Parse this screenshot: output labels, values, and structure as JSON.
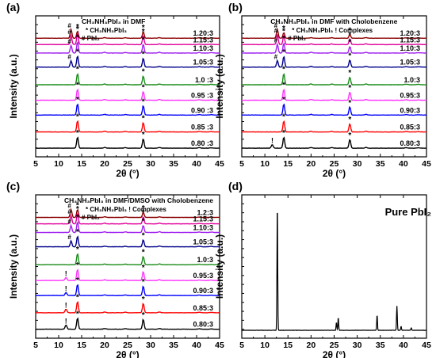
{
  "figure": {
    "x_label": "2θ (°)",
    "y_label": "Intensity (a.u.)"
  },
  "chart_data": [
    {
      "type": "line",
      "panel": "(a)",
      "title_lines": [
        "CH₃NH₃PbI₃ in DMF"
      ],
      "legend_lines": [
        "* CH₃NH₃PbI₃",
        "# PbI₂"
      ],
      "xlim": [
        5,
        45
      ],
      "x_ticks": [
        5,
        10,
        15,
        20,
        25,
        30,
        35,
        40,
        45
      ],
      "x_tick_labels": [
        "5",
        "10",
        "15",
        "20",
        "25",
        "30",
        "35",
        "40",
        "45"
      ],
      "series_labels": [
        "1.20:3",
        "1.15:3",
        "1.10:3",
        "1.05:3",
        "1.0 :3",
        "0.95 :3",
        "0.90 :3",
        "0.85 :3",
        "0.80 :3"
      ],
      "series_colors": [
        "#8b0000",
        "#e0009a",
        "#a020f0",
        "#00008b",
        "#1a8c1a",
        "#ff33ff",
        "#0000ff",
        "#ff0000",
        "#000000"
      ],
      "peaks_2theta": {
        "MAPbI3": [
          14.1,
          28.4
        ],
        "PbI2": [
          12.7
        ],
        "complex": []
      },
      "peak_heights_rel": {
        "PbI2": [
          0.95,
          0.75,
          0.65,
          0.55,
          0,
          0,
          0,
          0,
          0
        ],
        "MAPbI3_14": [
          0.75,
          0.95,
          0.95,
          0.95,
          0.95,
          0.95,
          0.95,
          0.95,
          0.95
        ],
        "MAPbI3_28": [
          0.7,
          0.75,
          0.75,
          0.75,
          0.75,
          0.75,
          0.8,
          0.8,
          0.8
        ],
        "complex": [
          0,
          0,
          0,
          0,
          0,
          0,
          0,
          0,
          0
        ]
      },
      "marked": {
        "hash": [
          true,
          true,
          true,
          true,
          false,
          false,
          false,
          false,
          false
        ],
        "star": [
          true,
          true,
          true,
          true,
          true,
          true,
          true,
          true,
          true
        ],
        "bang": [
          false,
          false,
          false,
          false,
          false,
          false,
          false,
          false,
          false
        ]
      }
    },
    {
      "type": "line",
      "panel": "(b)",
      "title_lines": [
        "CH₃NH₃PbI₃ in DMF with Cholobenzene"
      ],
      "legend_lines": [
        "* CH₃NH₃PbI₃ ! Complexes",
        "# PbI₂"
      ],
      "xlim": [
        5,
        45
      ],
      "x_ticks": [
        5,
        10,
        15,
        20,
        25,
        30,
        35,
        40,
        45
      ],
      "x_tick_labels": [
        "5",
        "10",
        "15",
        "20",
        "25",
        "30",
        "35",
        "40",
        "45"
      ],
      "series_labels": [
        "1.20:3",
        "1.15:3",
        "1.10:3",
        "1.05:3",
        "1.0:3",
        "0.95:3",
        "0.90:3",
        "0.85:3",
        "0.80:3"
      ],
      "series_colors": [
        "#8b0000",
        "#e0009a",
        "#a020f0",
        "#00008b",
        "#1a8c1a",
        "#ff33ff",
        "#0000ff",
        "#ff0000",
        "#000000"
      ],
      "peaks_2theta": {
        "MAPbI3": [
          14.1,
          28.4
        ],
        "PbI2": [
          12.7
        ],
        "complex": [
          11.6
        ]
      },
      "peak_heights_rel": {
        "PbI2": [
          0.95,
          0.85,
          0.75,
          0.55,
          0,
          0,
          0,
          0,
          0
        ],
        "MAPbI3_14": [
          0.6,
          0.8,
          0.85,
          0.9,
          0.95,
          0.95,
          0.95,
          0.95,
          0.95
        ],
        "MAPbI3_28": [
          0.4,
          0.5,
          0.55,
          0.6,
          0.65,
          0.7,
          0.7,
          0.7,
          0.75
        ],
        "complex": [
          0,
          0,
          0,
          0,
          0,
          0,
          0,
          0,
          0.3
        ]
      },
      "marked": {
        "hash": [
          true,
          true,
          true,
          true,
          false,
          false,
          false,
          false,
          false
        ],
        "star": [
          true,
          true,
          true,
          true,
          true,
          true,
          true,
          true,
          true
        ],
        "bang": [
          false,
          false,
          false,
          false,
          false,
          false,
          false,
          false,
          true
        ]
      }
    },
    {
      "type": "line",
      "panel": "(c)",
      "title_lines": [
        "CH₃NH₃PbI₃ in DMF/DMSO with Cholobenzene"
      ],
      "legend_lines": [
        "* CH₃NH₃PbI₃ ! Complexes",
        "# PbI₂"
      ],
      "xlim": [
        5,
        45
      ],
      "x_ticks": [
        5,
        10,
        15,
        20,
        25,
        30,
        35,
        40,
        45
      ],
      "x_tick_labels": [
        "5",
        "10",
        "15",
        "20",
        "25",
        "30",
        "35",
        "40",
        "45"
      ],
      "series_labels": [
        "1.2:3",
        "1.15:3",
        "1.10:3",
        "1.05:3",
        "1.0:3",
        "0.95:3",
        "0.90:3",
        "0.85:3",
        "0.80:3"
      ],
      "series_colors": [
        "#8b0000",
        "#e0009a",
        "#a020f0",
        "#00008b",
        "#1a8c1a",
        "#ff33ff",
        "#0000ff",
        "#ff0000",
        "#000000"
      ],
      "peaks_2theta": {
        "MAPbI3": [
          14.1,
          28.4
        ],
        "PbI2": [
          12.7
        ],
        "complex": [
          11.6
        ]
      },
      "peak_heights_rel": {
        "PbI2": [
          0.85,
          0.7,
          0.6,
          0.5,
          0,
          0,
          0,
          0,
          0
        ],
        "MAPbI3_14": [
          0.85,
          0.9,
          0.9,
          0.9,
          0.95,
          0.95,
          0.95,
          0.95,
          0.95
        ],
        "MAPbI3_28": [
          0.55,
          0.6,
          0.6,
          0.6,
          0.7,
          0.75,
          0.8,
          0.8,
          0.85
        ],
        "complex": [
          0,
          0,
          0,
          0,
          0,
          0.25,
          0.25,
          0.3,
          0.35
        ]
      },
      "marked": {
        "hash": [
          true,
          true,
          true,
          true,
          false,
          false,
          false,
          false,
          false
        ],
        "star": [
          true,
          true,
          true,
          true,
          true,
          true,
          true,
          true,
          true
        ],
        "bang": [
          false,
          false,
          false,
          false,
          false,
          true,
          true,
          true,
          true
        ]
      }
    },
    {
      "type": "line",
      "panel": "(d)",
      "title": "Pure PbI₂",
      "xlim": [
        5,
        45
      ],
      "x_ticks": [
        5,
        10,
        15,
        20,
        25,
        30,
        35,
        40,
        45
      ],
      "x_tick_labels": [
        "5",
        "10",
        "15",
        "20",
        "25",
        "30",
        "35",
        "40",
        "45"
      ],
      "series_colors": [
        "#000000"
      ],
      "peaks": [
        {
          "x": 12.7,
          "y": 1.0
        },
        {
          "x": 25.5,
          "y": 0.06
        },
        {
          "x": 25.9,
          "y": 0.1
        },
        {
          "x": 34.3,
          "y": 0.12
        },
        {
          "x": 38.6,
          "y": 0.19
        },
        {
          "x": 39.5,
          "y": 0.03
        },
        {
          "x": 41.7,
          "y": 0.02
        }
      ]
    }
  ]
}
